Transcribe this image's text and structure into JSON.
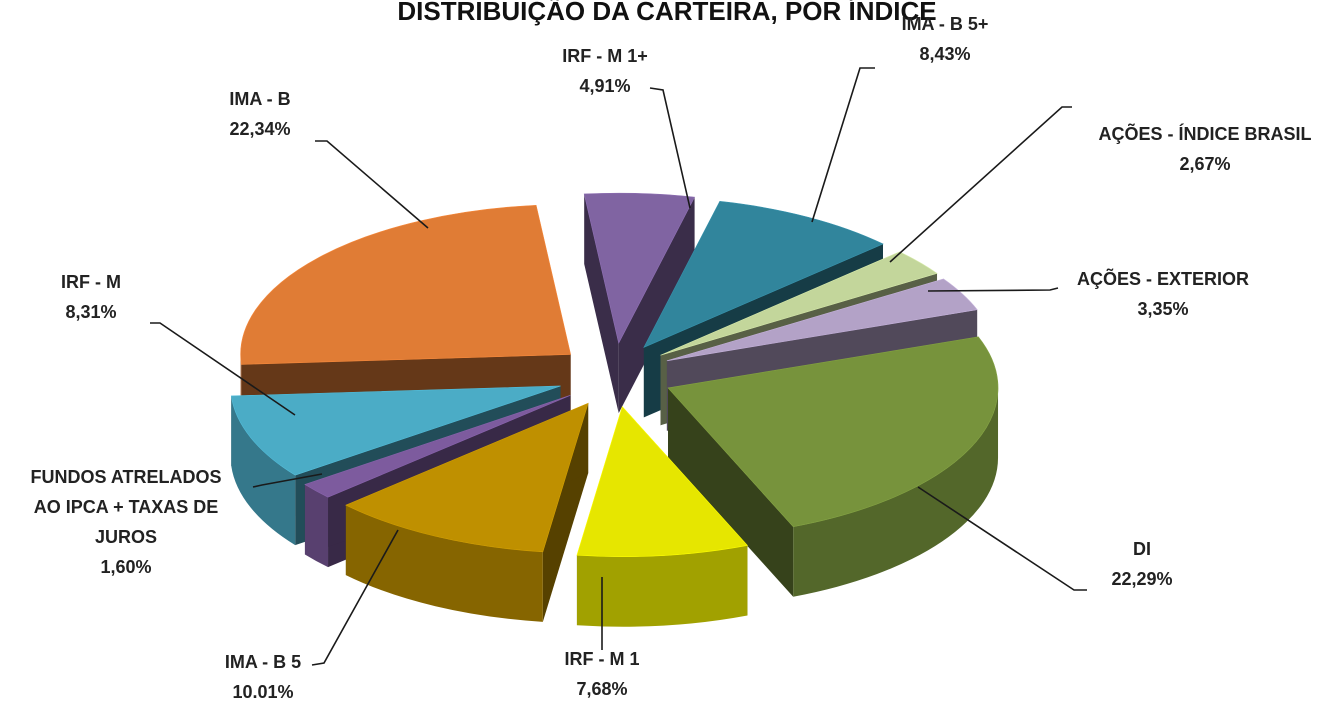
{
  "chart_data": {
    "type": "pie",
    "title": "DISTRIBUIÇÃO DA CARTEIRA, POR ÍNDICE",
    "style": "3d-exploded",
    "legend": "none",
    "slices": [
      {
        "label": "IRF - M 1+",
        "value_text": "4,91%",
        "value": 4.91,
        "color": "#8064a2"
      },
      {
        "label": "IMA - B 5+",
        "value_text": "8,43%",
        "value": 8.43,
        "color": "#31859c"
      },
      {
        "label": "AÇÕES - ÍNDICE BRASIL",
        "value_text": "2,67%",
        "value": 2.67,
        "color": "#c3d69b"
      },
      {
        "label": "AÇÕES - EXTERIOR",
        "value_text": "3,35%",
        "value": 3.35,
        "color": "#b3a2c7"
      },
      {
        "label": "DI",
        "value_text": "22,29%",
        "value": 22.29,
        "color": "#77933c"
      },
      {
        "label": "IRF - M 1",
        "value_text": "7,68%",
        "value": 7.68,
        "color": "#e6e600"
      },
      {
        "label": "IMA - B 5",
        "value_text": "10.01%",
        "value": 10.01,
        "color": "#bf9000"
      },
      {
        "label": "FUNDOS ATRELADOS AO IPCA + TAXAS DE JUROS",
        "value_text": "1,60%",
        "value": 1.6,
        "color": "#7d5b9e"
      },
      {
        "label": "IRF - M",
        "value_text": "8,31%",
        "value": 8.31,
        "color": "#4bacc6"
      },
      {
        "label": "IMA - B",
        "value_text": "22,34%",
        "value": 22.34,
        "color": "#e07c35"
      }
    ]
  }
}
